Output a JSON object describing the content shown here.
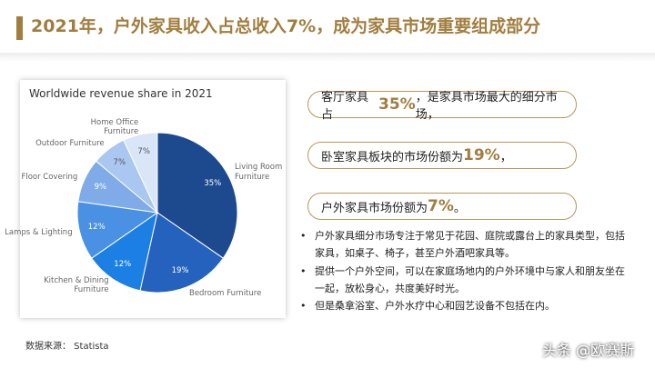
{
  "header": {
    "title": "2021年，户外家具收入占总收入7%，成为家具市场重要组成部分"
  },
  "chart_data": {
    "type": "pie",
    "title": "Worldwide revenue share in 2021",
    "categories": [
      "Living Room Furniture",
      "Bedroom Furniture",
      "Kitchen & Dining Furniture",
      "Lamps & Lighting",
      "Floor Covering",
      "Outdoor Furniture",
      "Home Office Furniture"
    ],
    "values": [
      35,
      19,
      12,
      12,
      9,
      7,
      7
    ],
    "value_labels": [
      "35%",
      "19%",
      "12%",
      "12%",
      "9%",
      "7%",
      "7%"
    ],
    "colors": [
      "#1d4a8f",
      "#2562bd",
      "#1b7fe3",
      "#4a91e4",
      "#7fabe8",
      "#a9c7f0",
      "#d8e6f8"
    ]
  },
  "highlights": [
    {
      "before": "客厅家具占",
      "highlight": "35%",
      "after": "，是家具市场最大的细分市场，"
    },
    {
      "before": "卧室家具板块的市场份额为",
      "highlight": "19%",
      "after": "，"
    },
    {
      "before": "户外家具市场份额为",
      "highlight": "7%",
      "after": "。"
    }
  ],
  "bullets": [
    "户外家具细分市场专注于常见于花园、庭院或露台上的家具类型，包括家具，如桌子、椅子，甚至户外酒吧家具等。",
    "提供一个户外空间，可以在家庭场地内的户外环境中与家人和朋友坐在一起，放松身心，共度美好时光。",
    "但是桑拿浴室、户外水疗中心和园艺设备不包括在内。"
  ],
  "source": "数据来源： Statista",
  "watermark": "头条 @欧赛斯"
}
